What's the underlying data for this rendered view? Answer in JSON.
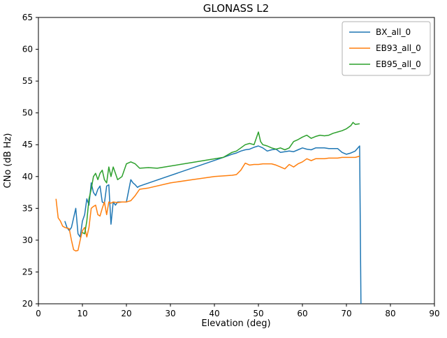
{
  "chart_data": {
    "type": "line",
    "title": "GLONASS L2",
    "xlabel": "Elevation (deg)",
    "ylabel": "CNo (dB Hz)",
    "xlim": [
      0,
      90
    ],
    "ylim": [
      20,
      65
    ],
    "xticks": [
      0,
      10,
      20,
      30,
      40,
      50,
      60,
      70,
      80,
      90
    ],
    "yticks": [
      20,
      25,
      30,
      35,
      40,
      45,
      50,
      55,
      60,
      65
    ],
    "grid": false,
    "legend_position": "upper right",
    "series": [
      {
        "name": "BX_all_0",
        "color": "#1f77b4",
        "points": [
          [
            6,
            33
          ],
          [
            6.5,
            32
          ],
          [
            7,
            31.5
          ],
          [
            7.5,
            32
          ],
          [
            8,
            33.5
          ],
          [
            8.5,
            35
          ],
          [
            9,
            31
          ],
          [
            9.5,
            30.5
          ],
          [
            10,
            33
          ],
          [
            10.5,
            34
          ],
          [
            11,
            36.5
          ],
          [
            11.5,
            35.5
          ],
          [
            12,
            39
          ],
          [
            12.5,
            37.5
          ],
          [
            13,
            37
          ],
          [
            13.5,
            38
          ],
          [
            14,
            38.5
          ],
          [
            14.5,
            36
          ],
          [
            15,
            35.8
          ],
          [
            15.5,
            38.5
          ],
          [
            16,
            38.7
          ],
          [
            16.5,
            32.5
          ],
          [
            17,
            36
          ],
          [
            17.5,
            35.5
          ],
          [
            18,
            36
          ],
          [
            19,
            36
          ],
          [
            20,
            36
          ],
          [
            21,
            39.5
          ],
          [
            21.5,
            39
          ],
          [
            22,
            38.7
          ],
          [
            22.5,
            38.3
          ],
          [
            23,
            38.5
          ],
          [
            42,
            43
          ],
          [
            44,
            43.5
          ],
          [
            45,
            43.7
          ],
          [
            46,
            44
          ],
          [
            47,
            44.2
          ],
          [
            48,
            44.3
          ],
          [
            49,
            44.6
          ],
          [
            50,
            44.8
          ],
          [
            51,
            44.5
          ],
          [
            52,
            44
          ],
          [
            53,
            44.2
          ],
          [
            54,
            44.3
          ],
          [
            55,
            43.8
          ],
          [
            56,
            43.9
          ],
          [
            57,
            44
          ],
          [
            58,
            43.9
          ],
          [
            59,
            44.2
          ],
          [
            60,
            44.5
          ],
          [
            61,
            44.3
          ],
          [
            62,
            44.2
          ],
          [
            63,
            44.5
          ],
          [
            64,
            44.5
          ],
          [
            65,
            44.5
          ],
          [
            66,
            44.4
          ],
          [
            67,
            44.4
          ],
          [
            68,
            44.4
          ],
          [
            69,
            43.8
          ],
          [
            70,
            43.5
          ],
          [
            71,
            43.7
          ],
          [
            72,
            44
          ],
          [
            73,
            44.8
          ],
          [
            73.3,
            20
          ]
        ]
      },
      {
        "name": "EB93_all_0",
        "color": "#ff7f0e",
        "points": [
          [
            4,
            36.5
          ],
          [
            4.5,
            33.5
          ],
          [
            5,
            33
          ],
          [
            5.5,
            32.2
          ],
          [
            6,
            32
          ],
          [
            6.5,
            31.9
          ],
          [
            7,
            31.8
          ],
          [
            7.5,
            30
          ],
          [
            8,
            28.5
          ],
          [
            8.5,
            28.3
          ],
          [
            9,
            28.4
          ],
          [
            9.5,
            30
          ],
          [
            10,
            31.5
          ],
          [
            10.5,
            32
          ],
          [
            11,
            30.5
          ],
          [
            11.5,
            32
          ],
          [
            12,
            35
          ],
          [
            12.5,
            35.3
          ],
          [
            13,
            35.5
          ],
          [
            13.5,
            34
          ],
          [
            14,
            33.8
          ],
          [
            14.5,
            35
          ],
          [
            15,
            36
          ],
          [
            15.5,
            34
          ],
          [
            16,
            36
          ],
          [
            16.5,
            35.8
          ],
          [
            17,
            36
          ],
          [
            18,
            35.9
          ],
          [
            19,
            36
          ],
          [
            20,
            36
          ],
          [
            21,
            36.2
          ],
          [
            22,
            37
          ],
          [
            23,
            38
          ],
          [
            25,
            38.2
          ],
          [
            30,
            39
          ],
          [
            35,
            39.5
          ],
          [
            40,
            40
          ],
          [
            44,
            40.2
          ],
          [
            45,
            40.3
          ],
          [
            46,
            41
          ],
          [
            47,
            42.1
          ],
          [
            48,
            41.8
          ],
          [
            49,
            41.9
          ],
          [
            50,
            41.9
          ],
          [
            51,
            42
          ],
          [
            52,
            42
          ],
          [
            53,
            42
          ],
          [
            54,
            41.8
          ],
          [
            55,
            41.5
          ],
          [
            56,
            41.2
          ],
          [
            57,
            41.9
          ],
          [
            58,
            41.5
          ],
          [
            59,
            42
          ],
          [
            60,
            42.3
          ],
          [
            61,
            42.8
          ],
          [
            62,
            42.5
          ],
          [
            63,
            42.8
          ],
          [
            64,
            42.8
          ],
          [
            65,
            42.8
          ],
          [
            66,
            42.9
          ],
          [
            67,
            42.9
          ],
          [
            68,
            42.9
          ],
          [
            69,
            43
          ],
          [
            70,
            43
          ],
          [
            71,
            43
          ],
          [
            72,
            43
          ],
          [
            73,
            43.2
          ]
        ]
      },
      {
        "name": "EB95_all_0",
        "color": "#2ca02c",
        "points": [
          [
            10,
            31.2
          ],
          [
            10.5,
            31
          ],
          [
            11,
            33
          ],
          [
            11.5,
            36.5
          ],
          [
            12,
            38
          ],
          [
            12.5,
            40
          ],
          [
            13,
            40.5
          ],
          [
            13.5,
            39.5
          ],
          [
            14,
            40.5
          ],
          [
            14.5,
            41
          ],
          [
            15,
            39.5
          ],
          [
            15.5,
            39
          ],
          [
            16,
            41.5
          ],
          [
            16.5,
            40
          ],
          [
            17,
            41.5
          ],
          [
            17.5,
            40.5
          ],
          [
            18,
            39.5
          ],
          [
            19,
            40
          ],
          [
            20,
            42
          ],
          [
            21,
            42.3
          ],
          [
            22,
            42
          ],
          [
            23,
            41.3
          ],
          [
            25,
            41.4
          ],
          [
            27,
            41.3
          ],
          [
            42,
            43
          ],
          [
            44,
            43.8
          ],
          [
            45,
            44
          ],
          [
            46,
            44.5
          ],
          [
            47,
            45
          ],
          [
            48,
            45.2
          ],
          [
            49,
            45
          ],
          [
            50,
            47
          ],
          [
            50.5,
            45.5
          ],
          [
            51,
            45
          ],
          [
            52,
            44.8
          ],
          [
            53,
            44.5
          ],
          [
            54,
            44.3
          ],
          [
            55,
            44.5
          ],
          [
            56,
            44.2
          ],
          [
            57,
            44.5
          ],
          [
            58,
            45.5
          ],
          [
            59,
            45.8
          ],
          [
            60,
            46.2
          ],
          [
            61,
            46.5
          ],
          [
            62,
            46
          ],
          [
            63,
            46.3
          ],
          [
            64,
            46.5
          ],
          [
            65,
            46.4
          ],
          [
            66,
            46.5
          ],
          [
            67,
            46.8
          ],
          [
            68,
            47
          ],
          [
            69,
            47.2
          ],
          [
            70,
            47.5
          ],
          [
            71,
            48
          ],
          [
            71.5,
            48.5
          ],
          [
            72,
            48.2
          ],
          [
            73,
            48.3
          ]
        ]
      }
    ]
  }
}
